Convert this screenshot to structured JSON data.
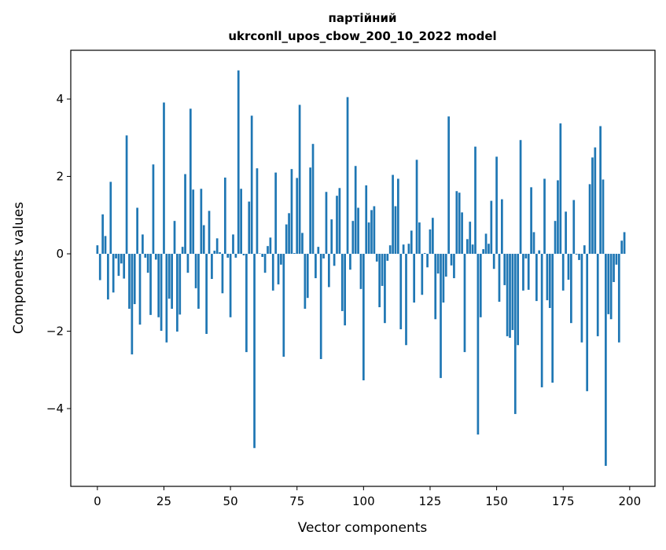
{
  "chart_data": {
    "type": "bar",
    "title_line1": "партійний",
    "title_line2": "ukrconll_upos_cbow_200_10_2022 model",
    "xlabel": "Vector components",
    "ylabel": "Components values",
    "xlim": [
      -10,
      209.5
    ],
    "ylim": [
      -6.01,
      5.26
    ],
    "xticks": [
      0,
      25,
      50,
      75,
      100,
      125,
      150,
      175,
      200
    ],
    "yticks": [
      -4,
      -2,
      0,
      2,
      4
    ],
    "bar_color": "#1f77b4",
    "grid": false,
    "values": [
      0.22,
      -0.68,
      1.02,
      0.46,
      -1.18,
      1.86,
      -1.0,
      -0.12,
      -0.57,
      -0.25,
      -0.64,
      3.06,
      -1.42,
      -2.6,
      -1.3,
      1.19,
      -1.83,
      0.5,
      -0.1,
      -0.49,
      -1.58,
      2.31,
      -0.15,
      -1.64,
      -1.99,
      3.91,
      -2.29,
      -1.16,
      -1.42,
      0.85,
      -2.01,
      -1.57,
      0.18,
      2.06,
      -0.49,
      3.75,
      1.66,
      -0.89,
      -1.42,
      1.68,
      0.74,
      -2.07,
      1.11,
      -0.65,
      0.08,
      0.4,
      0.04,
      -1.02,
      1.97,
      -0.1,
      -1.64,
      0.5,
      -0.1,
      4.74,
      1.68,
      -0.04,
      -2.54,
      1.35,
      3.57,
      -5.02,
      2.21,
      0.01,
      -0.08,
      -0.49,
      0.2,
      0.42,
      -0.95,
      2.1,
      -0.79,
      -0.28,
      -2.66,
      0.76,
      1.05,
      2.19,
      0.02,
      1.96,
      3.85,
      0.54,
      -1.42,
      -1.14,
      2.23,
      2.84,
      -0.63,
      0.18,
      -2.72,
      -0.12,
      1.6,
      -0.86,
      0.89,
      -0.31,
      1.5,
      1.7,
      -1.48,
      -1.85,
      4.05,
      -0.41,
      0.85,
      2.27,
      1.19,
      -0.91,
      -3.27,
      1.77,
      0.81,
      1.13,
      1.23,
      -0.2,
      -1.38,
      -0.83,
      -1.79,
      -0.18,
      0.22,
      2.04,
      1.23,
      1.94,
      -1.95,
      0.24,
      -2.36,
      0.26,
      0.6,
      -1.26,
      2.43,
      0.81,
      -1.06,
      0.02,
      -0.35,
      0.63,
      0.93,
      -1.69,
      -0.51,
      -3.21,
      -1.26,
      -0.59,
      3.55,
      -0.3,
      -0.63,
      1.62,
      1.58,
      1.07,
      -2.54,
      0.38,
      0.83,
      0.24,
      2.77,
      -4.67,
      -1.64,
      0.12,
      0.52,
      0.26,
      1.37,
      -0.39,
      2.51,
      -1.24,
      1.41,
      -0.81,
      -2.13,
      -2.17,
      -1.97,
      -4.14,
      -2.36,
      2.94,
      -0.95,
      -0.12,
      -0.93,
      1.72,
      0.56,
      -1.22,
      0.09,
      -3.45,
      1.94,
      -1.2,
      -1.4,
      -3.33,
      0.85,
      1.9,
      3.37,
      -0.95,
      1.09,
      -0.67,
      -1.79,
      1.39,
      -0.02,
      -0.16,
      -2.29,
      0.22,
      -3.55,
      1.8,
      2.49,
      2.75,
      -2.13,
      3.3,
      1.92,
      -5.48,
      -1.56,
      -1.69,
      -0.73,
      -0.28,
      -2.29,
      0.34,
      0.56
    ]
  }
}
